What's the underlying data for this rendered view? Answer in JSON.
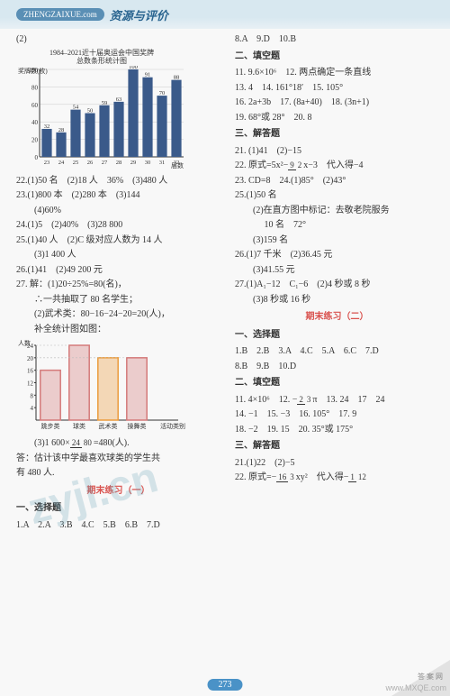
{
  "header": {
    "badge": "ZHENGZAIXUE.com",
    "title": "资源与评价"
  },
  "page_number": "273",
  "watermarks": {
    "wm1": "zyjl.cn"
  },
  "corner": {
    "site": "答案网",
    "url": "www.MXQE.com"
  },
  "left": {
    "l0": "(2)",
    "chart1": {
      "title1": "1984–2021近十届奥运会中国奖牌",
      "title2": "总数条形统计图",
      "ylabel": "奖牌数(枚)",
      "xlabel": "届数",
      "ylim": [
        0,
        100
      ],
      "ytick": 20,
      "categories": [
        "23",
        "24",
        "25",
        "26",
        "27",
        "28",
        "29",
        "30",
        "31",
        "32"
      ],
      "values": [
        32,
        28,
        54,
        50,
        59,
        63,
        100,
        91,
        70,
        88
      ],
      "labels": [
        "32",
        "28",
        "54",
        "50",
        "59",
        "63",
        "100",
        "91",
        "70",
        "88"
      ],
      "bar_color": "#3a5a8a",
      "grid_color": "#cccccc",
      "bg": "#ffffff"
    },
    "l22": "22.(1)50 名　(2)18 人　36%　(3)480 人",
    "l23a": "23.(1)800 本　(2)280 本　(3)144",
    "l23b": "　　(4)60%",
    "l24": "24.(1)5　(2)40%　(3)28 800",
    "l25a": "25.(1)40 人　(2)C 级对应人数为 14 人",
    "l25b": "　　(3)1 400 人",
    "l26": "26.(1)41　(2)49 200 元",
    "l27a": "27. 解：(1)20÷25%=80(名)，",
    "l27b": "　　∴一共抽取了 80 名学生；",
    "l27c": "　　(2)武术类：80−16−24−20=20(人)，",
    "l27d": "　　补全统计图如图：",
    "chart2": {
      "ylabel": "人数",
      "xlabel": "活动类别",
      "categories": [
        "跳步类",
        "球类",
        "武术类",
        "操舞类"
      ],
      "values": [
        16,
        24,
        20,
        20
      ],
      "yticks": [
        4,
        8,
        12,
        16,
        20,
        24
      ],
      "bar_color": "#d47a7a",
      "grid_color": "#cccccc",
      "highlight_index": 2,
      "highlight_color": "#ec9c3c"
    },
    "l27e_pre": "　　(3)1 600×",
    "l27e_num": "24",
    "l27e_den": "80",
    "l27e_post": "=480(人).",
    "l27f": "答：估计该中学最喜欢球类的学生共",
    "l27g": "有 480 人.",
    "final_title": "期末练习（一）",
    "sel_title": "一、选择题",
    "sel_line": "1.A　2.A　3.B　4.C　5.B　6.B　7.D"
  },
  "right": {
    "r0": "8.A　9.D　10.B",
    "fill_title": "二、填空题",
    "r11": "11. 9.6×10⁶　12. 两点确定一条直线",
    "r13": "13. 4　14. 161°18′　15. 105°",
    "r16": "16. 2a+3b　17. (8a+40)　18. (3n+1)",
    "r19": "19. 68°或 28°　20. 8",
    "ans_title": "三、解答题",
    "r21": "21. (1)41　(2)−15",
    "r22_pre": "22. 原式=5x²−",
    "r22_num": "9",
    "r22_den": "2",
    "r22_post": "x−3　代入得−4",
    "r23": "23. CD=8　24.(1)85°　(2)43°",
    "r25a": "25.(1)50 名",
    "r25b": "　　(2)在直方图中标记：去敬老院服务",
    "r25c": "　　　 10 名　72°",
    "r25d": "　　(3)159 名",
    "r26a": "26.(1)7 千米　(2)36.45 元",
    "r26b": "　　(3)41.55 元",
    "r27a": "27.(1)A₁−12　C₁−6　(2)4 秒或 8 秒",
    "r27b": "　　(3)8 秒或 16 秒",
    "final2_title": "期末练习（二）",
    "sel2_title": "一、选择题",
    "sel2a": "1.B　2.B　3.A　4.C　5.A　6.C　7.D",
    "sel2b": "8.B　9.B　10.D",
    "fill2_title": "二、填空题",
    "r11b_pre": "11. 4×10⁶　12. −",
    "r11b_num": "2",
    "r11b_den": "3",
    "r11b_post": "π　13. 24　17　24",
    "r14b": "14. −1　15. −3　16. 105°　17. 9",
    "r18b": "18. −2　19. 15　20. 35°或 175°",
    "ans2_title": "三、解答题",
    "r21b": "21.(1)22　(2)−5",
    "r22b_pre": "22. 原式=−",
    "r22b_num": "16",
    "r22b_den": "3",
    "r22b_mid": "xy²　代入得−",
    "r22b_num2": "1",
    "r22b_den2": "12"
  }
}
